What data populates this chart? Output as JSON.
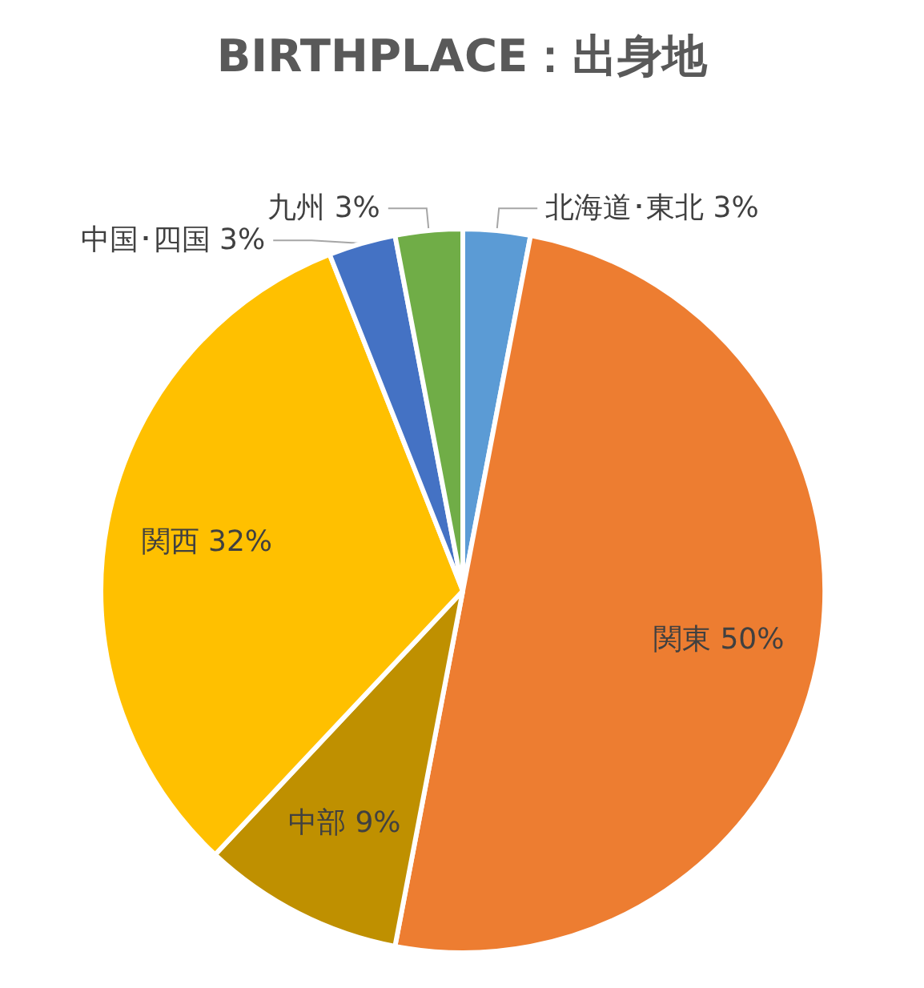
{
  "chart_data": {
    "type": "pie",
    "title": "BIRTHPLACE：出身地",
    "categories": [
      "北海道･東北",
      "関東",
      "中部",
      "関西",
      "中国･四国",
      "九州"
    ],
    "values": [
      3,
      50,
      9,
      32,
      3,
      3
    ],
    "value_labels": [
      "3%",
      "50%",
      "9%",
      "32%",
      "3%",
      "3%"
    ],
    "colors": [
      "#5b9bd5",
      "#ed7d31",
      "#bf9000",
      "#ffc000",
      "#4472c4",
      "#70ad47"
    ]
  }
}
